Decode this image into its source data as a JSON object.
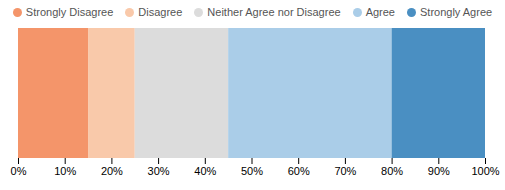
{
  "chart_data": {
    "type": "bar",
    "orientation": "horizontal",
    "stacked": true,
    "categories": [
      null
    ],
    "series": [
      {
        "name": "Strongly Disagree",
        "color": "#F4956A",
        "values": [
          15
        ]
      },
      {
        "name": "Disagree",
        "color": "#F9C9AA",
        "values": [
          10
        ]
      },
      {
        "name": "Neither Agree nor Disagree",
        "color": "#DCDCDC",
        "values": [
          20
        ]
      },
      {
        "name": "Agree",
        "color": "#AACDE8",
        "values": [
          35
        ]
      },
      {
        "name": "Strongly Agree",
        "color": "#4A8FC2",
        "values": [
          20
        ]
      }
    ],
    "xlim": [
      0,
      100
    ],
    "xticks": [
      {
        "value": 0,
        "label": "0%"
      },
      {
        "value": 10,
        "label": "10%"
      },
      {
        "value": 20,
        "label": "20%"
      },
      {
        "value": 30,
        "label": "30%"
      },
      {
        "value": 40,
        "label": "40%"
      },
      {
        "value": 50,
        "label": "50%"
      },
      {
        "value": 60,
        "label": "60%"
      },
      {
        "value": 70,
        "label": "70%"
      },
      {
        "value": 80,
        "label": "80%"
      },
      {
        "value": 90,
        "label": "90%"
      },
      {
        "value": 100,
        "label": "100%"
      }
    ],
    "legend": "top",
    "tick_labels": "x"
  }
}
